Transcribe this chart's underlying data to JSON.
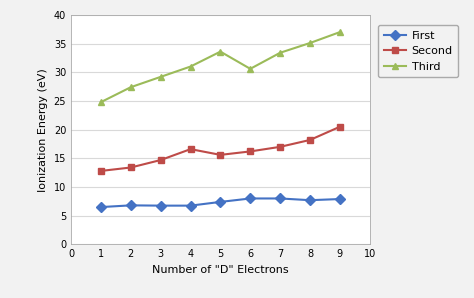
{
  "x": [
    1,
    2,
    3,
    4,
    5,
    6,
    7,
    8,
    9
  ],
  "first": [
    6.5,
    6.8,
    6.75,
    6.75,
    7.4,
    8.0,
    8.0,
    7.7,
    7.9
  ],
  "second": [
    12.8,
    13.4,
    14.7,
    16.6,
    15.6,
    16.2,
    17.0,
    18.2,
    20.5
  ],
  "third": [
    24.8,
    27.4,
    29.2,
    31.0,
    33.6,
    30.6,
    33.4,
    35.1,
    37.0
  ],
  "first_color": "#4472c4",
  "second_color": "#be4b48",
  "third_color": "#9bbb59",
  "marker_first": "D",
  "marker_second": "s",
  "marker_third": "^",
  "xlabel": "Number of \"D\" Electrons",
  "ylabel": "Ionization Energy (eV)",
  "xlim": [
    0,
    10
  ],
  "ylim": [
    0,
    40
  ],
  "xticks": [
    0,
    1,
    2,
    3,
    4,
    5,
    6,
    7,
    8,
    9,
    10
  ],
  "yticks": [
    0,
    5,
    10,
    15,
    20,
    25,
    30,
    35,
    40
  ],
  "legend_labels": [
    "First",
    "Second",
    "Third"
  ],
  "fig_bg_color": "#f2f2f2",
  "plot_bg_color": "#ffffff",
  "grid_color": "#d9d9d9",
  "linewidth": 1.5,
  "markersize": 5
}
